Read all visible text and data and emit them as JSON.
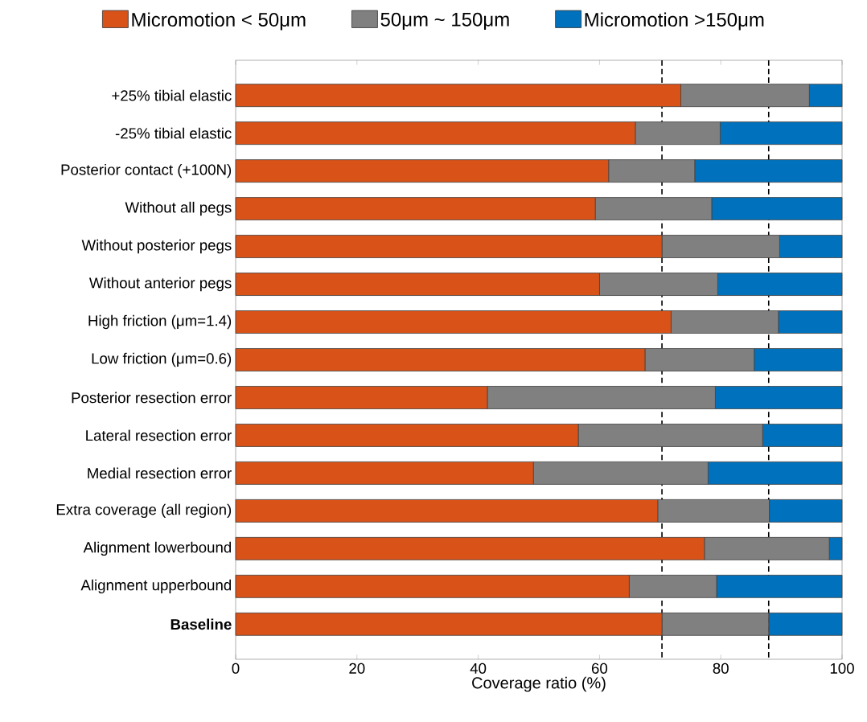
{
  "chart_data": {
    "type": "bar",
    "orientation": "horizontal",
    "stacked": true,
    "categories": [
      "+25% tibial elastic",
      "-25% tibial elastic",
      "Posterior contact (+100N)",
      "Without all pegs",
      "Without posterior pegs",
      "Without anterior pegs",
      "High friction (μm=1.4)",
      "Low friction (μm=0.6)",
      "Posterior resection error",
      "Lateral resection error",
      "Medial resection error",
      "Extra coverage (all region)",
      "Alignment lowerbound",
      "Alignment upperbound",
      "**Baseline**"
    ],
    "series": [
      {
        "name": "Micromotion < 50μm",
        "color": "#d95319",
        "values": [
          73.4,
          65.9,
          61.5,
          59.3,
          70.3,
          60.0,
          71.8,
          67.5,
          41.5,
          56.5,
          49.1,
          69.6,
          77.3,
          64.9,
          70.3
        ]
      },
      {
        "name": "50μm ~ 150μm",
        "color": "#808080",
        "values": [
          21.2,
          14.0,
          14.2,
          19.2,
          19.4,
          19.5,
          17.7,
          18.0,
          37.6,
          30.4,
          28.8,
          18.4,
          20.6,
          14.4,
          17.6
        ]
      },
      {
        "name": "Micromotion >150μm",
        "color": "#0072bd",
        "values": [
          5.4,
          20.1,
          24.3,
          21.5,
          10.3,
          20.5,
          10.5,
          14.5,
          20.9,
          13.1,
          22.1,
          12.0,
          2.1,
          20.7,
          12.1
        ]
      }
    ],
    "xlim": [
      0,
      100
    ],
    "xticks": [
      0,
      20,
      40,
      60,
      80,
      100
    ],
    "xlabel": "Coverage ratio (%)",
    "ref_lines": [
      {
        "axis": "x",
        "value": 70.3,
        "color": "#000000",
        "line_style": "dashed"
      },
      {
        "axis": "x",
        "value": 87.9,
        "color": "#000000",
        "line_style": "dashed"
      }
    ],
    "legend": "top"
  }
}
